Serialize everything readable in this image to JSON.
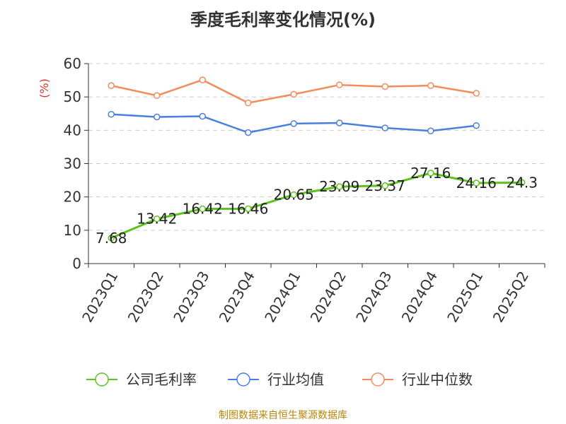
{
  "title": "季度毛利率变化情况(%)",
  "source": "制图数据来自恒生聚源数据库",
  "chart_data": {
    "type": "line",
    "title": "季度毛利率变化情况(%)",
    "ylabel": "(%)",
    "xlabel": "",
    "ylim": [
      0,
      60
    ],
    "yticks": [
      0,
      10,
      20,
      30,
      40,
      50,
      60
    ],
    "grid": true,
    "legend_position": "bottom",
    "categories": [
      "2023Q1",
      "2023Q2",
      "2023Q3",
      "2023Q4",
      "2024Q1",
      "2024Q2",
      "2024Q3",
      "2024Q4",
      "2025Q1",
      "2025Q2"
    ],
    "series": [
      {
        "name": "公司毛利率",
        "color": "#5cc21d",
        "show_labels": true,
        "labels": [
          "7.68",
          "13.42",
          "16.42",
          "16.46",
          "20.65",
          "23.09",
          "23.37",
          "27.16",
          "24.16",
          "24.3"
        ],
        "values": [
          7.68,
          13.42,
          16.42,
          16.46,
          20.65,
          23.09,
          23.37,
          27.16,
          24.16,
          24.3
        ]
      },
      {
        "name": "行业均值",
        "color": "#4a7fdc",
        "show_labels": false,
        "values": [
          44.8,
          44.0,
          44.2,
          39.3,
          42.0,
          42.2,
          40.7,
          39.8,
          41.4,
          null
        ]
      },
      {
        "name": "行业中位数",
        "color": "#f28c5a",
        "show_labels": false,
        "values": [
          53.4,
          50.4,
          55.1,
          48.2,
          50.8,
          53.6,
          53.1,
          53.4,
          51.1,
          null
        ]
      }
    ]
  }
}
